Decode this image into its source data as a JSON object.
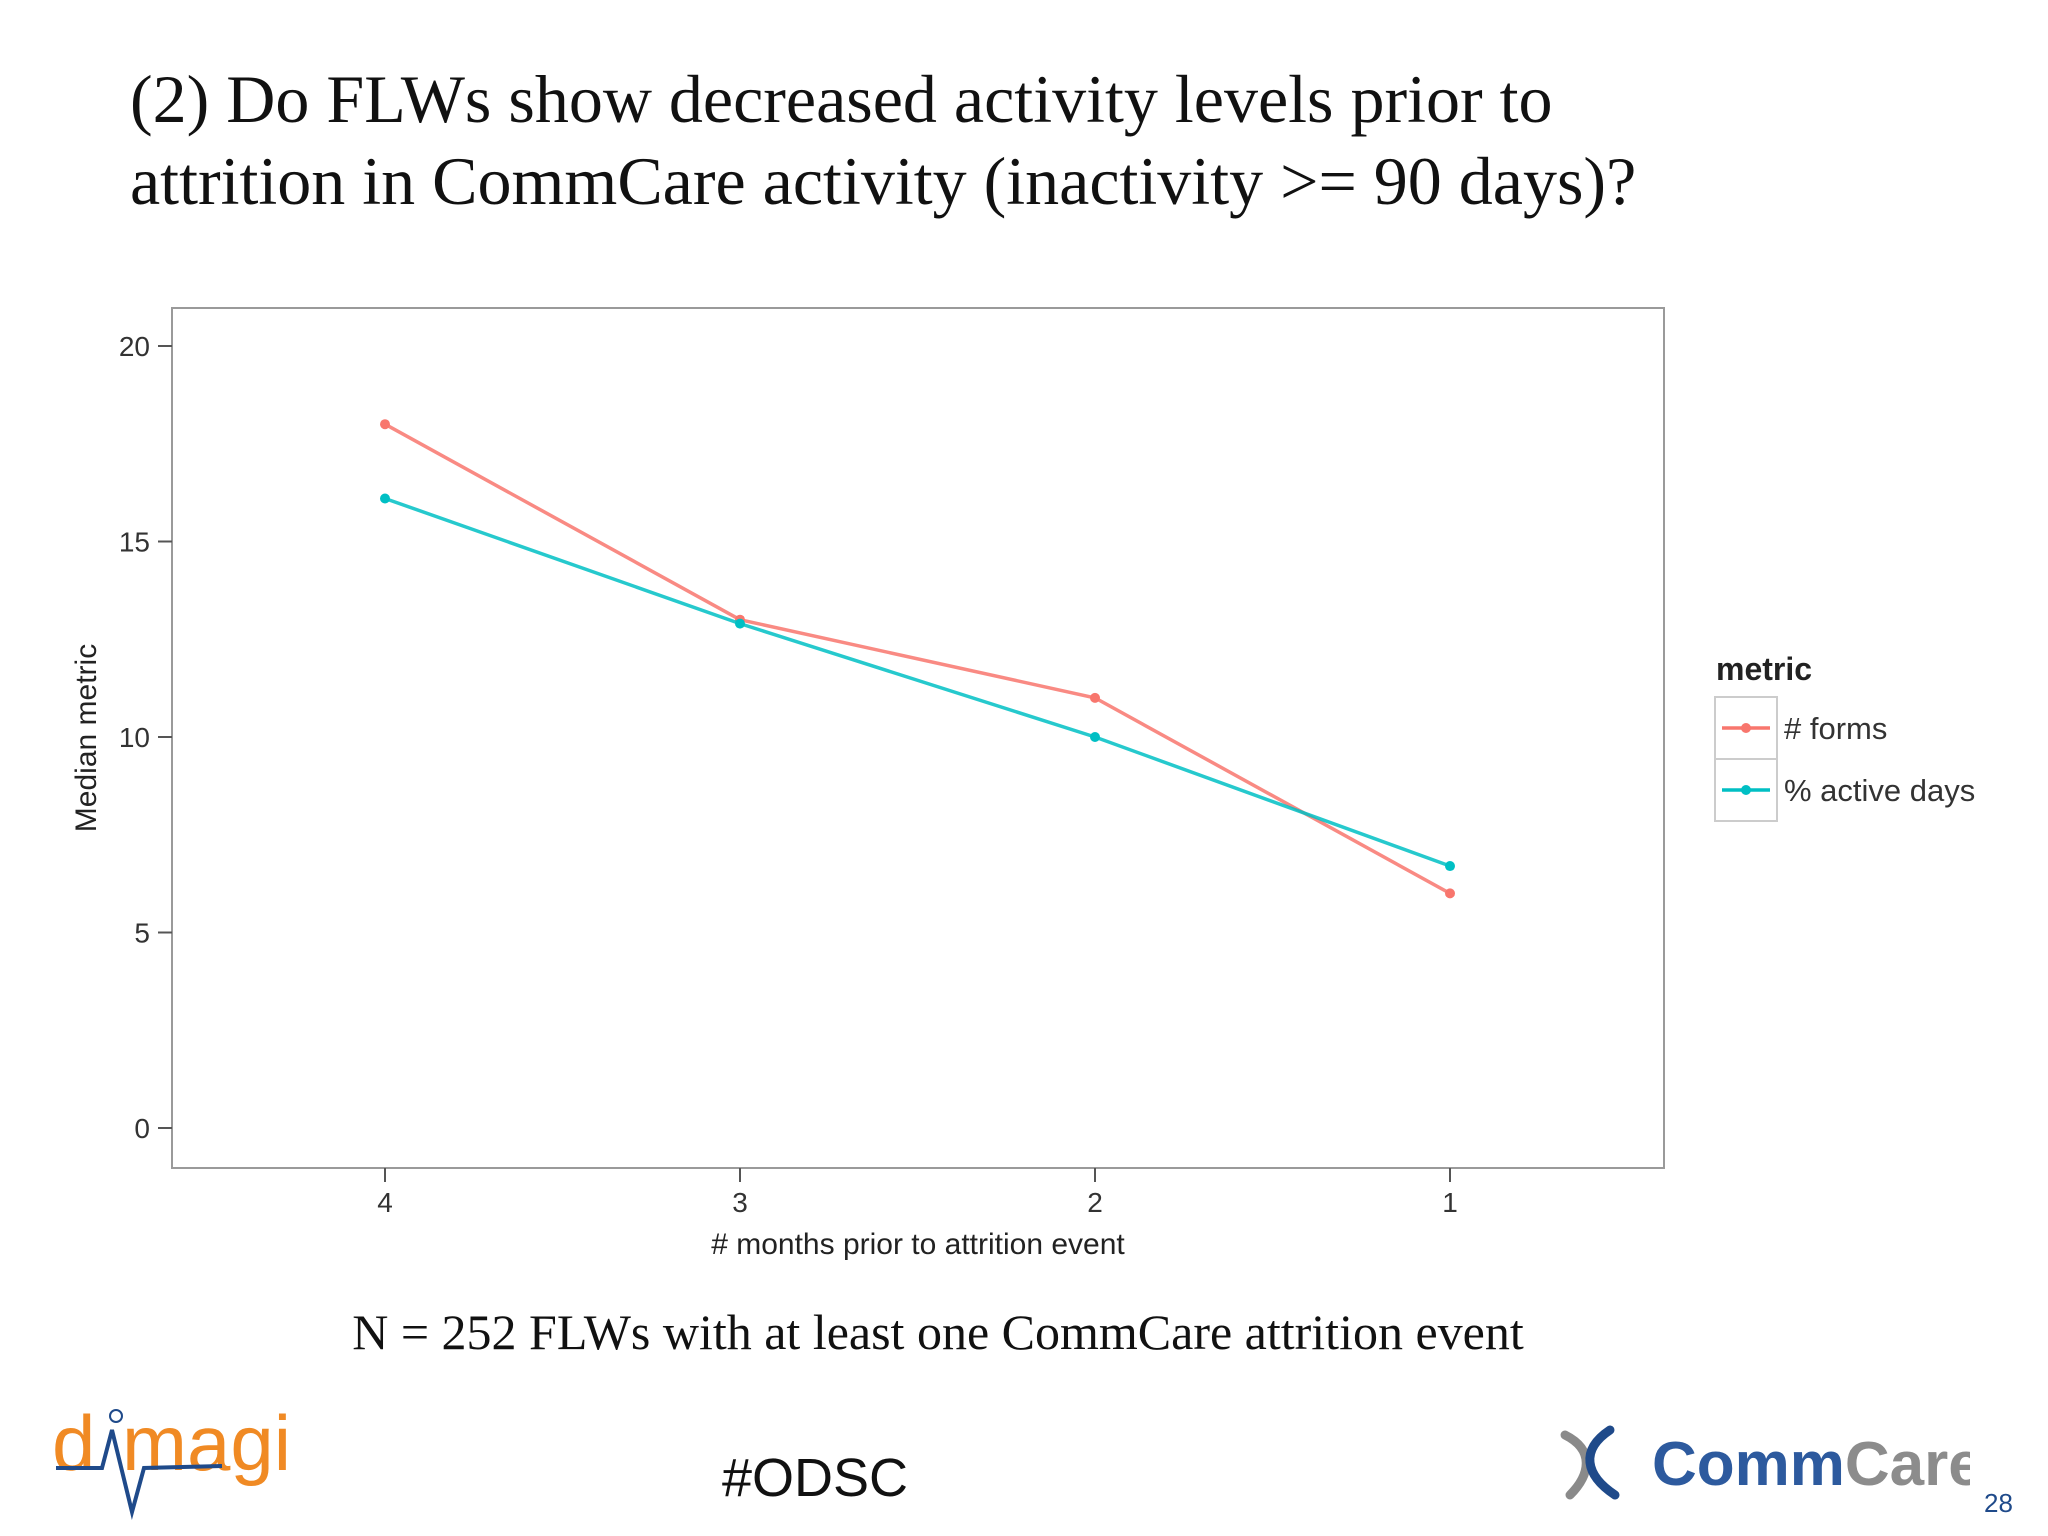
{
  "slide": {
    "title_line1": "(2) Do FLWs show decreased activity levels prior to",
    "title_line2": "attrition in CommCare activity (inactivity >= 90 days)?",
    "caption": "N = 252 FLWs with at least one CommCare attrition event",
    "hashtag": "#ODSC",
    "page_number": "28",
    "logo_left": "dimagi",
    "logo_right": "CommCare"
  },
  "chart_data": {
    "type": "line",
    "xlabel": "# months prior to attrition event",
    "ylabel": "Median metric",
    "x": [
      4,
      3,
      2,
      1
    ],
    "x_tick_labels": [
      "4",
      "3",
      "2",
      "1"
    ],
    "x_reversed": true,
    "y_ticks": [
      0,
      5,
      10,
      15,
      20
    ],
    "ylim": [
      -1,
      21
    ],
    "grid": false,
    "legend": {
      "title": "metric",
      "placement": "right"
    },
    "series": [
      {
        "name": "# forms",
        "color": "#F8766D",
        "values": [
          18,
          13,
          11,
          6
        ]
      },
      {
        "name": "% active days",
        "color": "#00BFC4",
        "values": [
          16.1,
          12.9,
          10,
          6.7
        ]
      }
    ]
  }
}
